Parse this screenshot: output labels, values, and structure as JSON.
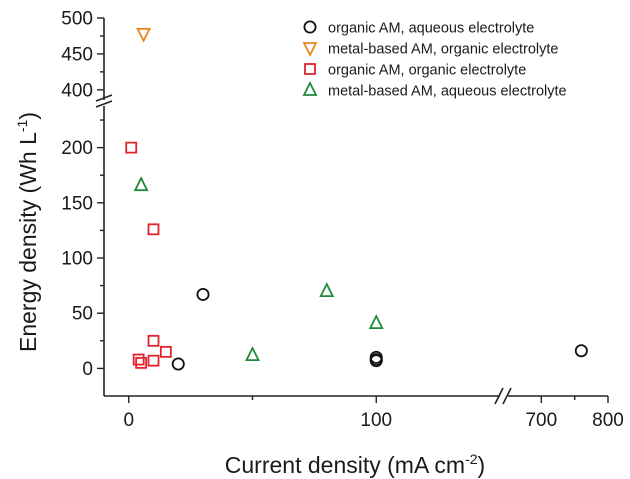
{
  "chart_data": {
    "type": "scatter",
    "xlabel_main": "Current density (mA cm",
    "xlabel_sup": "-2",
    "xlabel_end": ")",
    "ylabel_main": "Energy density (Wh L",
    "ylabel_sup": "-1",
    "ylabel_end": ")",
    "x_axis": {
      "segments": [
        [
          -10,
          150
        ],
        [
          650,
          800
        ]
      ],
      "ticks": [
        {
          "value": 0,
          "label": "0"
        },
        {
          "value": 100,
          "label": "100"
        },
        {
          "value": 700,
          "label": "700"
        },
        {
          "value": 800,
          "label": "800"
        }
      ]
    },
    "y_axis": {
      "segments": [
        [
          -25,
          235
        ],
        [
          390,
          500
        ]
      ],
      "ticks": [
        {
          "value": 0,
          "label": "0"
        },
        {
          "value": 50,
          "label": "50"
        },
        {
          "value": 100,
          "label": "100"
        },
        {
          "value": 150,
          "label": "150"
        },
        {
          "value": 200,
          "label": "200"
        },
        {
          "value": 400,
          "label": "400"
        },
        {
          "value": 450,
          "label": "450"
        },
        {
          "value": 500,
          "label": "500"
        }
      ]
    },
    "legend_position": "top-right",
    "grid": false,
    "series": [
      {
        "name": "organic AM, aqueous electrolyte",
        "marker": "circle",
        "color": "#111111",
        "points": [
          [
            20,
            4
          ],
          [
            30,
            67
          ],
          [
            100,
            10
          ],
          [
            100,
            7
          ],
          [
            100,
            8
          ],
          [
            760,
            16
          ]
        ]
      },
      {
        "name": "metal-based AM, organic electrolyte",
        "marker": "triangle-down",
        "color": "#e8861e",
        "points": [
          [
            6,
            478
          ]
        ]
      },
      {
        "name": "organic AM, organic electrolyte",
        "marker": "square",
        "color": "#e1242c",
        "points": [
          [
            1,
            200
          ],
          [
            4,
            8
          ],
          [
            5,
            5
          ],
          [
            10,
            126
          ],
          [
            10,
            25
          ],
          [
            10,
            7
          ],
          [
            15,
            15
          ]
        ]
      },
      {
        "name": "metal-based AM, aqueous electrolyte",
        "marker": "triangle-up",
        "color": "#1f8a3a",
        "points": [
          [
            5,
            166
          ],
          [
            50,
            12
          ],
          [
            80,
            70
          ],
          [
            100,
            41
          ]
        ]
      }
    ]
  }
}
